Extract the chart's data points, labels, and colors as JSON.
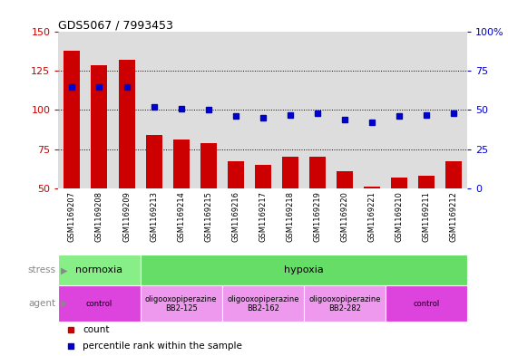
{
  "title": "GDS5067 / 7993453",
  "samples": [
    "GSM1169207",
    "GSM1169208",
    "GSM1169209",
    "GSM1169213",
    "GSM1169214",
    "GSM1169215",
    "GSM1169216",
    "GSM1169217",
    "GSM1169218",
    "GSM1169219",
    "GSM1169220",
    "GSM1169221",
    "GSM1169210",
    "GSM1169211",
    "GSM1169212"
  ],
  "counts": [
    138,
    129,
    132,
    84,
    81,
    79,
    67,
    65,
    70,
    70,
    61,
    51,
    57,
    58,
    67
  ],
  "percentiles": [
    65,
    65,
    65,
    52,
    51,
    50,
    46,
    45,
    47,
    48,
    44,
    42,
    46,
    47,
    48
  ],
  "bar_color": "#cc0000",
  "dot_color": "#0000cc",
  "ylim_left": [
    50,
    150
  ],
  "ylim_right": [
    0,
    100
  ],
  "yticks_left": [
    50,
    75,
    100,
    125,
    150
  ],
  "yticks_right": [
    0,
    25,
    50,
    75,
    100
  ],
  "ytick_labels_right": [
    "0",
    "25",
    "50",
    "75",
    "100%"
  ],
  "grid_values": [
    75,
    100,
    125
  ],
  "stress_groups": [
    {
      "label": "normoxia",
      "start": 0,
      "end": 3,
      "color": "#88ee88"
    },
    {
      "label": "hypoxia",
      "start": 3,
      "end": 15,
      "color": "#66dd66"
    }
  ],
  "agent_groups": [
    {
      "label": "control",
      "start": 0,
      "end": 3,
      "color": "#dd44dd"
    },
    {
      "label": "oligooxopiperazine\nBB2-125",
      "start": 3,
      "end": 6,
      "color": "#ee99ee"
    },
    {
      "label": "oligooxopiperazine\nBB2-162",
      "start": 6,
      "end": 9,
      "color": "#ee99ee"
    },
    {
      "label": "oligooxopiperazine\nBB2-282",
      "start": 9,
      "end": 12,
      "color": "#ee99ee"
    },
    {
      "label": "control",
      "start": 12,
      "end": 15,
      "color": "#dd44dd"
    }
  ],
  "bg_color": "#ffffff",
  "plot_bg_color": "#dddddd",
  "label_left_color": "#888888",
  "legend_count_color": "#cc0000",
  "legend_dot_color": "#0000cc"
}
